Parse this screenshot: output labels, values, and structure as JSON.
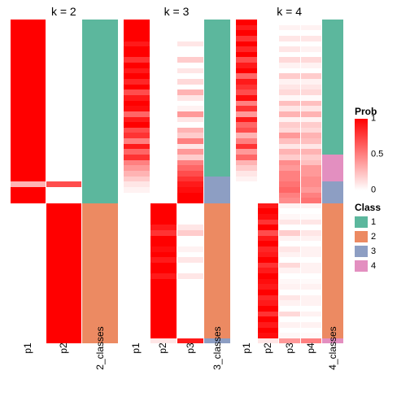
{
  "background_color": "#ffffff",
  "title_fontsize": 14,
  "label_fontsize": 12,
  "nrows": 60,
  "prob_legend": {
    "title": "Prob",
    "colors": [
      "#ffffff",
      "#ff0000"
    ],
    "ticks": [
      {
        "pos": 0,
        "label": "1"
      },
      {
        "pos": 0.5,
        "label": "0.5"
      },
      {
        "pos": 1,
        "label": "0"
      }
    ]
  },
  "class_legend": {
    "title": "Class",
    "items": [
      {
        "label": "1",
        "color": "#5cb79d"
      },
      {
        "label": "2",
        "color": "#ec8a62"
      },
      {
        "label": "3",
        "color": "#8d9ec3"
      },
      {
        "label": "4",
        "color": "#e38fc0"
      }
    ]
  },
  "panels": [
    {
      "title": "k = 2",
      "xlabels": [
        "p1",
        "p2",
        "2_classes"
      ],
      "columns": [
        {
          "type": "prob",
          "values": [
            1,
            1,
            1,
            1,
            1,
            1,
            1,
            1,
            1,
            1,
            1,
            1,
            1,
            1,
            1,
            1,
            1,
            1,
            1,
            1,
            1,
            1,
            1,
            1,
            1,
            1,
            1,
            1,
            1,
            1,
            0.3,
            1,
            1,
            1,
            0,
            0,
            0,
            0,
            0,
            0,
            0,
            0,
            0,
            0,
            0,
            0,
            0,
            0,
            0,
            0,
            0,
            0,
            0,
            0,
            0,
            0,
            0,
            0,
            0,
            0
          ]
        },
        {
          "type": "prob",
          "values": [
            0,
            0,
            0,
            0,
            0,
            0,
            0,
            0,
            0,
            0,
            0,
            0,
            0,
            0,
            0,
            0,
            0,
            0,
            0,
            0,
            0,
            0,
            0,
            0,
            0,
            0,
            0,
            0,
            0,
            0,
            0.7,
            0,
            0,
            0,
            1,
            1,
            1,
            1,
            1,
            1,
            1,
            1,
            1,
            1,
            1,
            1,
            1,
            1,
            1,
            1,
            1,
            1,
            1,
            1,
            1,
            1,
            1,
            1,
            1,
            1
          ]
        },
        {
          "type": "class",
          "values": [
            1,
            1,
            1,
            1,
            1,
            1,
            1,
            1,
            1,
            1,
            1,
            1,
            1,
            1,
            1,
            1,
            1,
            1,
            1,
            1,
            1,
            1,
            1,
            1,
            1,
            1,
            1,
            1,
            1,
            1,
            1,
            1,
            1,
            1,
            2,
            2,
            2,
            2,
            2,
            2,
            2,
            2,
            2,
            2,
            2,
            2,
            2,
            2,
            2,
            2,
            2,
            2,
            2,
            2,
            2,
            2,
            2,
            2,
            2,
            2
          ]
        }
      ]
    },
    {
      "title": "k = 3",
      "xlabels": [
        "p1",
        "p2",
        "p3",
        "3_classes"
      ],
      "columns": [
        {
          "type": "prob",
          "values": [
            1,
            1,
            1,
            1,
            0.9,
            1,
            1,
            0.8,
            1,
            0.9,
            1,
            0.85,
            1,
            0.7,
            0.9,
            1,
            0.95,
            0.6,
            0.9,
            1,
            0.7,
            0.8,
            0.5,
            0.9,
            0.6,
            0.8,
            0.5,
            0.4,
            0.3,
            0.2,
            0.1,
            0.05,
            0,
            0,
            0,
            0,
            0,
            0,
            0,
            0,
            0,
            0,
            0,
            0,
            0,
            0,
            0,
            0,
            0,
            0,
            0,
            0,
            0,
            0,
            0,
            0,
            0,
            0,
            0,
            0
          ]
        },
        {
          "type": "prob",
          "values": [
            0,
            0,
            0,
            0,
            0,
            0,
            0,
            0,
            0,
            0,
            0,
            0,
            0,
            0,
            0,
            0,
            0,
            0,
            0,
            0,
            0,
            0,
            0,
            0,
            0,
            0,
            0,
            0,
            0,
            0,
            0,
            0,
            0,
            0,
            1,
            1,
            1,
            1,
            0.9,
            0.8,
            1,
            1,
            0.95,
            1,
            0.9,
            1,
            1,
            0.9,
            1,
            1,
            1,
            1,
            1,
            1,
            1,
            1,
            1,
            1,
            1,
            0.1
          ]
        },
        {
          "type": "prob",
          "values": [
            0,
            0,
            0,
            0,
            0.1,
            0,
            0,
            0.2,
            0,
            0.1,
            0,
            0.15,
            0,
            0.3,
            0.1,
            0,
            0.05,
            0.4,
            0.1,
            0,
            0.3,
            0.2,
            0.5,
            0.1,
            0.4,
            0.2,
            0.5,
            0.6,
            0.7,
            0.8,
            0.9,
            0.95,
            1,
            1,
            0,
            0,
            0,
            0,
            0.1,
            0.2,
            0,
            0,
            0.05,
            0,
            0.1,
            0,
            0,
            0.1,
            0,
            0,
            0,
            0,
            0,
            0,
            0,
            0,
            0,
            0,
            0,
            0.9
          ]
        },
        {
          "type": "class",
          "values": [
            1,
            1,
            1,
            1,
            1,
            1,
            1,
            1,
            1,
            1,
            1,
            1,
            1,
            1,
            1,
            1,
            1,
            1,
            1,
            1,
            1,
            1,
            1,
            1,
            1,
            1,
            1,
            1,
            1,
            3,
            3,
            3,
            3,
            3,
            2,
            2,
            2,
            2,
            2,
            2,
            2,
            2,
            2,
            2,
            2,
            2,
            2,
            2,
            2,
            2,
            2,
            2,
            2,
            2,
            2,
            2,
            2,
            2,
            2,
            3
          ]
        }
      ]
    },
    {
      "title": "k = 4",
      "xlabels": [
        "p1",
        "p2",
        "p3",
        "p4",
        "4_classes"
      ],
      "columns": [
        {
          "type": "prob",
          "values": [
            1,
            0.9,
            1,
            0.8,
            1,
            0.85,
            1,
            0.7,
            0.9,
            1,
            0.6,
            0.9,
            0.8,
            0.7,
            0.95,
            0.5,
            0.8,
            0.4,
            0.9,
            0.6,
            0.7,
            0.3,
            0.5,
            0.8,
            0.4,
            0.6,
            0.3,
            0.2,
            0.1,
            0.05,
            0,
            0,
            0,
            0,
            0,
            0,
            0,
            0,
            0,
            0,
            0,
            0,
            0,
            0,
            0,
            0,
            0,
            0,
            0,
            0,
            0,
            0,
            0,
            0,
            0,
            0,
            0,
            0,
            0,
            0
          ]
        },
        {
          "type": "prob",
          "values": [
            0,
            0,
            0,
            0,
            0,
            0,
            0,
            0,
            0,
            0,
            0,
            0,
            0,
            0,
            0,
            0,
            0,
            0,
            0,
            0,
            0,
            0,
            0,
            0,
            0,
            0,
            0,
            0,
            0,
            0,
            0,
            0,
            0,
            0,
            0.9,
            1,
            0.95,
            0.8,
            1,
            0.7,
            0.9,
            1,
            0.85,
            0.9,
            1,
            0.8,
            0.9,
            1,
            0.95,
            0.9,
            1,
            0.85,
            0.9,
            1,
            0.8,
            1,
            0.9,
            1,
            0.95,
            0.1
          ]
        },
        {
          "type": "prob",
          "values": [
            0,
            0.05,
            0,
            0.1,
            0,
            0.1,
            0,
            0.15,
            0.05,
            0,
            0.2,
            0.05,
            0.1,
            0.15,
            0.03,
            0.25,
            0.1,
            0.3,
            0.05,
            0.2,
            0.15,
            0.4,
            0.25,
            0.1,
            0.3,
            0.2,
            0.45,
            0.4,
            0.5,
            0.5,
            0.55,
            0.6,
            0.5,
            0.45,
            0.05,
            0,
            0.03,
            0.1,
            0,
            0.2,
            0.05,
            0,
            0.1,
            0.05,
            0,
            0.15,
            0.05,
            0,
            0.03,
            0.05,
            0,
            0.1,
            0.05,
            0,
            0.15,
            0,
            0.05,
            0,
            0.03,
            0.4
          ]
        },
        {
          "type": "prob",
          "values": [
            0,
            0.05,
            0,
            0.1,
            0,
            0.05,
            0,
            0.15,
            0.05,
            0,
            0.2,
            0.05,
            0.1,
            0.15,
            0.02,
            0.25,
            0.1,
            0.3,
            0.05,
            0.2,
            0.15,
            0.3,
            0.25,
            0.1,
            0.3,
            0.2,
            0.25,
            0.4,
            0.4,
            0.45,
            0.45,
            0.4,
            0.5,
            0.55,
            0.05,
            0,
            0.02,
            0.1,
            0,
            0.1,
            0.05,
            0,
            0.05,
            0.05,
            0,
            0.05,
            0.05,
            0,
            0.02,
            0.05,
            0,
            0.05,
            0.05,
            0,
            0.05,
            0,
            0.05,
            0,
            0.02,
            0.5
          ]
        },
        {
          "type": "class",
          "values": [
            1,
            1,
            1,
            1,
            1,
            1,
            1,
            1,
            1,
            1,
            1,
            1,
            1,
            1,
            1,
            1,
            1,
            1,
            1,
            1,
            1,
            1,
            1,
            1,
            1,
            4,
            4,
            4,
            4,
            4,
            3,
            3,
            3,
            3,
            2,
            2,
            2,
            2,
            2,
            2,
            2,
            2,
            2,
            2,
            2,
            2,
            2,
            2,
            2,
            2,
            2,
            2,
            2,
            2,
            2,
            2,
            2,
            2,
            2,
            4
          ]
        }
      ]
    }
  ]
}
